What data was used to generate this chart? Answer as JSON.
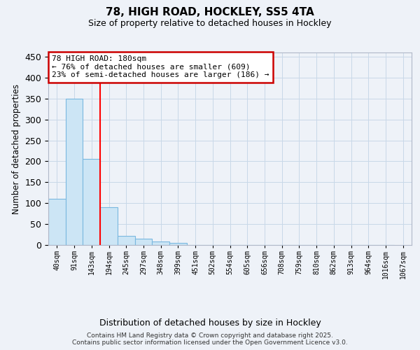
{
  "title_line1": "78, HIGH ROAD, HOCKLEY, SS5 4TA",
  "title_line2": "Size of property relative to detached houses in Hockley",
  "xlabel": "Distribution of detached houses by size in Hockley",
  "ylabel": "Number of detached properties",
  "bar_values": [
    110,
    350,
    205,
    90,
    22,
    15,
    8,
    5,
    0,
    0,
    0,
    0,
    0,
    0,
    0,
    0,
    0,
    0,
    0,
    0
  ],
  "bin_labels": [
    "40sqm",
    "91sqm",
    "143sqm",
    "194sqm",
    "245sqm",
    "297sqm",
    "348sqm",
    "399sqm",
    "451sqm",
    "502sqm",
    "554sqm",
    "605sqm",
    "656sqm",
    "708sqm",
    "759sqm",
    "810sqm",
    "862sqm",
    "913sqm",
    "964sqm",
    "1016sqm",
    "1067sqm"
  ],
  "bar_color": "#cce5f5",
  "bar_edge_color": "#7ab8e0",
  "grid_color": "#c8d8e8",
  "background_color": "#eef2f8",
  "red_line_x": 2.5,
  "annotation_text": "78 HIGH ROAD: 180sqm\n← 76% of detached houses are smaller (609)\n23% of semi-detached houses are larger (186) →",
  "annotation_box_color": "#ffffff",
  "annotation_box_edge": "#cc0000",
  "ylim": [
    0,
    460
  ],
  "yticks": [
    0,
    50,
    100,
    150,
    200,
    250,
    300,
    350,
    400,
    450
  ],
  "footer_line1": "Contains HM Land Registry data © Crown copyright and database right 2025.",
  "footer_line2": "Contains public sector information licensed under the Open Government Licence v3.0."
}
